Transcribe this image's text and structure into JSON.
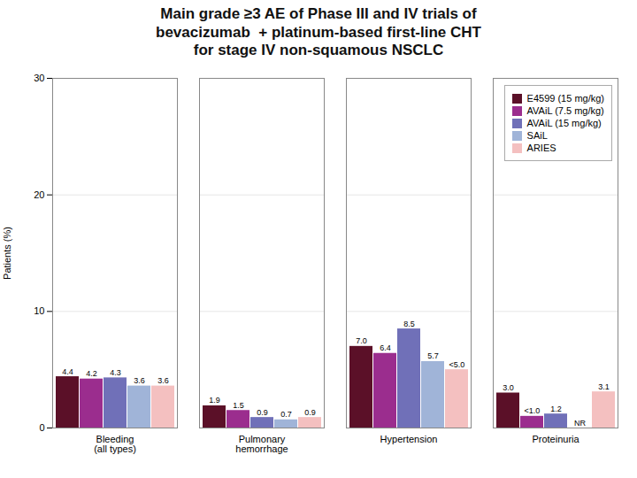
{
  "chart_data": {
    "type": "bar",
    "title": "Main grade ≥3 AE of Phase III and IV trials of\nbevacizumab  + platinum-based first-line CHT\nfor stage IV non-squamous NSCLC",
    "ylabel": "Patients (%)",
    "categories": [
      "Bleeding\n(all types)",
      "Pulmonary\nhemorrhage",
      "Hypertension",
      "Proteinuria"
    ],
    "series": [
      {
        "name": "E4599 (15 mg/kg)",
        "color": "#5b1028",
        "values": [
          4.4,
          1.9,
          7.0,
          3.0
        ],
        "value_labels": [
          "4.4",
          "1.9",
          "7.0",
          "3.0"
        ]
      },
      {
        "name": "AVAiL (7.5 mg/kg)",
        "color": "#9b2d8e",
        "values": [
          4.2,
          1.5,
          6.4,
          1.0
        ],
        "value_labels": [
          "4.2",
          "1.5",
          "6.4",
          "<1.0"
        ]
      },
      {
        "name": "AVAiL (15 mg/kg)",
        "color": "#7070b8",
        "values": [
          4.3,
          0.9,
          8.5,
          1.2
        ],
        "value_labels": [
          "4.3",
          "0.9",
          "8.5",
          "1.2"
        ]
      },
      {
        "name": "SAiL",
        "color": "#a0b4d8",
        "values": [
          3.6,
          0.7,
          5.7,
          null
        ],
        "value_labels": [
          "3.6",
          "0.7",
          "5.7",
          "NR"
        ]
      },
      {
        "name": "ARIES",
        "color": "#f4c0c0",
        "values": [
          3.6,
          0.9,
          5.0,
          3.1
        ],
        "value_labels": [
          "3.6",
          "0.9",
          "<5.0",
          "3.1"
        ]
      }
    ],
    "ylim": [
      0,
      30
    ],
    "yticks": [
      0,
      10,
      20,
      30
    ],
    "grid": true,
    "legend": "upper right",
    "data_labels": true
  }
}
